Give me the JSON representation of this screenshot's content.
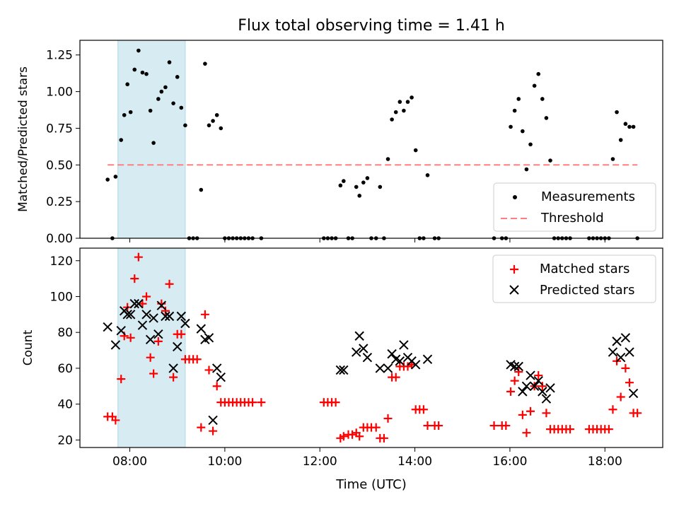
{
  "title": "Flux total observing time = 1.41 h",
  "xlabel": "Time (UTC)",
  "x_ticks": [
    "08:00",
    "10:00",
    "12:00",
    "14:00",
    "16:00",
    "18:00"
  ],
  "colors": {
    "measurements": "#000000",
    "threshold": "#ff7f7f",
    "matched": "#ff0000",
    "predicted": "#000000",
    "shade": "#add8e6"
  },
  "chart_data": [
    {
      "type": "scatter",
      "ylabel": "Matched/Predicted stars",
      "ylim": [
        0,
        1.35
      ],
      "y_ticks": [
        "0.00",
        "0.25",
        "0.50",
        "0.75",
        "1.00",
        "1.25"
      ],
      "xlim": [
        "06:57",
        "19:13"
      ],
      "shaded_interval": [
        "07:45",
        "09:10"
      ],
      "legend_position": "lower-right",
      "series": [
        {
          "name": "Measurements",
          "points": [
            [
              "07:32",
              0.4
            ],
            [
              "07:38",
              0.0
            ],
            [
              "07:42",
              0.42
            ],
            [
              "07:49",
              0.67
            ],
            [
              "07:53",
              0.84
            ],
            [
              "07:57",
              1.05
            ],
            [
              "08:01",
              0.86
            ],
            [
              "08:06",
              1.15
            ],
            [
              "08:11",
              1.28
            ],
            [
              "08:16",
              1.13
            ],
            [
              "08:21",
              1.12
            ],
            [
              "08:26",
              0.87
            ],
            [
              "08:30",
              0.65
            ],
            [
              "08:36",
              0.95
            ],
            [
              "08:40",
              1.0
            ],
            [
              "08:45",
              1.03
            ],
            [
              "08:50",
              1.2
            ],
            [
              "08:55",
              0.92
            ],
            [
              "09:00",
              1.1
            ],
            [
              "09:05",
              0.89
            ],
            [
              "09:10",
              0.77
            ],
            [
              "09:15",
              0.0
            ],
            [
              "09:20",
              0.0
            ],
            [
              "09:25",
              0.0
            ],
            [
              "09:30",
              0.33
            ],
            [
              "09:35",
              1.19
            ],
            [
              "09:40",
              0.77
            ],
            [
              "09:45",
              0.8
            ],
            [
              "09:50",
              0.84
            ],
            [
              "09:55",
              0.75
            ],
            [
              "10:00",
              0.0
            ],
            [
              "10:05",
              0.0
            ],
            [
              "10:10",
              0.0
            ],
            [
              "10:15",
              0.0
            ],
            [
              "10:20",
              0.0
            ],
            [
              "10:25",
              0.0
            ],
            [
              "10:30",
              0.0
            ],
            [
              "10:35",
              0.0
            ],
            [
              "10:46",
              0.0
            ],
            [
              "12:05",
              0.0
            ],
            [
              "12:10",
              0.0
            ],
            [
              "12:15",
              0.0
            ],
            [
              "12:20",
              0.0
            ],
            [
              "12:26",
              0.36
            ],
            [
              "12:30",
              0.39
            ],
            [
              "12:36",
              0.0
            ],
            [
              "12:41",
              0.0
            ],
            [
              "12:46",
              0.35
            ],
            [
              "12:50",
              0.29
            ],
            [
              "12:55",
              0.38
            ],
            [
              "13:00",
              0.41
            ],
            [
              "13:05",
              0.0
            ],
            [
              "13:11",
              0.0
            ],
            [
              "13:16",
              0.35
            ],
            [
              "13:21",
              0.0
            ],
            [
              "13:26",
              0.54
            ],
            [
              "13:31",
              0.81
            ],
            [
              "13:36",
              0.86
            ],
            [
              "13:41",
              0.93
            ],
            [
              "13:46",
              0.87
            ],
            [
              "13:51",
              0.93
            ],
            [
              "13:56",
              0.96
            ],
            [
              "14:01",
              0.6
            ],
            [
              "14:06",
              0.0
            ],
            [
              "14:11",
              0.0
            ],
            [
              "14:16",
              0.43
            ],
            [
              "14:25",
              0.0
            ],
            [
              "14:30",
              0.0
            ],
            [
              "15:40",
              0.0
            ],
            [
              "15:50",
              0.0
            ],
            [
              "15:55",
              0.0
            ],
            [
              "16:01",
              0.76
            ],
            [
              "16:06",
              0.87
            ],
            [
              "16:11",
              0.95
            ],
            [
              "16:16",
              0.73
            ],
            [
              "16:21",
              0.47
            ],
            [
              "16:26",
              0.64
            ],
            [
              "16:31",
              1.04
            ],
            [
              "16:36",
              1.12
            ],
            [
              "16:41",
              0.95
            ],
            [
              "16:46",
              0.82
            ],
            [
              "16:51",
              0.53
            ],
            [
              "16:56",
              0.0
            ],
            [
              "17:01",
              0.0
            ],
            [
              "17:06",
              0.0
            ],
            [
              "17:11",
              0.0
            ],
            [
              "17:16",
              0.0
            ],
            [
              "17:40",
              0.0
            ],
            [
              "17:45",
              0.0
            ],
            [
              "17:50",
              0.0
            ],
            [
              "17:55",
              0.0
            ],
            [
              "18:00",
              0.0
            ],
            [
              "18:05",
              0.0
            ],
            [
              "18:10",
              0.54
            ],
            [
              "18:15",
              0.86
            ],
            [
              "18:20",
              0.67
            ],
            [
              "18:26",
              0.78
            ],
            [
              "18:31",
              0.76
            ],
            [
              "18:36",
              0.76
            ],
            [
              "18:41",
              0.0
            ]
          ]
        },
        {
          "name": "Threshold",
          "style": "dashed",
          "x": [
            "07:32",
            "18:41"
          ],
          "y": [
            0.5,
            0.5
          ]
        }
      ]
    },
    {
      "type": "scatter",
      "ylabel": "Count",
      "ylim": [
        15.8,
        127
      ],
      "y_ticks": [
        "20",
        "40",
        "60",
        "80",
        "100",
        "120"
      ],
      "xlim": [
        "06:57",
        "19:13"
      ],
      "shaded_interval": [
        "07:45",
        "09:10"
      ],
      "legend_position": "upper-right",
      "series": [
        {
          "name": "Matched stars",
          "marker": "plus",
          "points": [
            [
              "07:32",
              33
            ],
            [
              "07:38",
              33
            ],
            [
              "07:42",
              31
            ],
            [
              "07:49",
              54
            ],
            [
              "07:53",
              78
            ],
            [
              "07:57",
              94
            ],
            [
              "08:01",
              77
            ],
            [
              "08:06",
              110
            ],
            [
              "08:11",
              122
            ],
            [
              "08:16",
              96
            ],
            [
              "08:21",
              100
            ],
            [
              "08:26",
              66
            ],
            [
              "08:30",
              57
            ],
            [
              "08:36",
              75
            ],
            [
              "08:40",
              96
            ],
            [
              "08:45",
              92
            ],
            [
              "08:50",
              107
            ],
            [
              "08:55",
              55
            ],
            [
              "09:00",
              79
            ],
            [
              "09:05",
              79
            ],
            [
              "09:10",
              65
            ],
            [
              "09:15",
              65
            ],
            [
              "09:20",
              65
            ],
            [
              "09:25",
              65
            ],
            [
              "09:30",
              27
            ],
            [
              "09:35",
              90
            ],
            [
              "09:40",
              59
            ],
            [
              "09:45",
              25
            ],
            [
              "09:50",
              50
            ],
            [
              "09:55",
              41
            ],
            [
              "10:00",
              41
            ],
            [
              "10:05",
              41
            ],
            [
              "10:10",
              41
            ],
            [
              "10:15",
              41
            ],
            [
              "10:20",
              41
            ],
            [
              "10:25",
              41
            ],
            [
              "10:30",
              41
            ],
            [
              "10:35",
              41
            ],
            [
              "10:46",
              41
            ],
            [
              "12:05",
              41
            ],
            [
              "12:10",
              41
            ],
            [
              "12:15",
              41
            ],
            [
              "12:20",
              41
            ],
            [
              "12:26",
              21
            ],
            [
              "12:30",
              22
            ],
            [
              "12:36",
              23
            ],
            [
              "12:41",
              23
            ],
            [
              "12:46",
              24
            ],
            [
              "12:50",
              22
            ],
            [
              "12:55",
              27
            ],
            [
              "13:00",
              27
            ],
            [
              "13:05",
              27
            ],
            [
              "13:11",
              27
            ],
            [
              "13:16",
              21
            ],
            [
              "13:21",
              21
            ],
            [
              "13:26",
              32
            ],
            [
              "13:31",
              55
            ],
            [
              "13:36",
              55
            ],
            [
              "13:41",
              61
            ],
            [
              "13:46",
              61
            ],
            [
              "13:51",
              61
            ],
            [
              "13:56",
              62
            ],
            [
              "14:01",
              37
            ],
            [
              "14:06",
              37
            ],
            [
              "14:11",
              37
            ],
            [
              "14:16",
              28
            ],
            [
              "14:25",
              28
            ],
            [
              "14:30",
              28
            ],
            [
              "15:40",
              28
            ],
            [
              "15:50",
              28
            ],
            [
              "15:55",
              28
            ],
            [
              "16:01",
              47
            ],
            [
              "16:06",
              53
            ],
            [
              "16:11",
              58
            ],
            [
              "16:16",
              34
            ],
            [
              "16:21",
              24
            ],
            [
              "16:26",
              36
            ],
            [
              "16:31",
              50
            ],
            [
              "16:36",
              56
            ],
            [
              "16:41",
              50
            ],
            [
              "16:46",
              35
            ],
            [
              "16:51",
              26
            ],
            [
              "16:56",
              26
            ],
            [
              "17:01",
              26
            ],
            [
              "17:06",
              26
            ],
            [
              "17:11",
              26
            ],
            [
              "17:16",
              26
            ],
            [
              "17:40",
              26
            ],
            [
              "17:45",
              26
            ],
            [
              "17:50",
              26
            ],
            [
              "17:55",
              26
            ],
            [
              "18:00",
              26
            ],
            [
              "18:05",
              26
            ],
            [
              "18:10",
              37
            ],
            [
              "18:15",
              64
            ],
            [
              "18:20",
              44
            ],
            [
              "18:26",
              60
            ],
            [
              "18:31",
              52
            ],
            [
              "18:36",
              35
            ],
            [
              "18:41",
              35
            ]
          ]
        },
        {
          "name": "Predicted stars",
          "marker": "x",
          "points": [
            [
              "07:32",
              83
            ],
            [
              "07:42",
              73
            ],
            [
              "07:49",
              81
            ],
            [
              "07:53",
              92
            ],
            [
              "07:57",
              90
            ],
            [
              "08:01",
              90
            ],
            [
              "08:06",
              96
            ],
            [
              "08:11",
              96
            ],
            [
              "08:16",
              84
            ],
            [
              "08:21",
              90
            ],
            [
              "08:26",
              76
            ],
            [
              "08:30",
              88
            ],
            [
              "08:36",
              79
            ],
            [
              "08:40",
              95
            ],
            [
              "08:45",
              89
            ],
            [
              "08:50",
              89
            ],
            [
              "08:55",
              60
            ],
            [
              "09:00",
              72
            ],
            [
              "09:05",
              89
            ],
            [
              "09:10",
              85
            ],
            [
              "09:30",
              82
            ],
            [
              "09:35",
              76
            ],
            [
              "09:40",
              77
            ],
            [
              "09:45",
              31
            ],
            [
              "09:50",
              60
            ],
            [
              "09:55",
              55
            ],
            [
              "12:26",
              59
            ],
            [
              "12:30",
              59
            ],
            [
              "12:46",
              69
            ],
            [
              "12:50",
              78
            ],
            [
              "12:55",
              71
            ],
            [
              "13:00",
              66
            ],
            [
              "13:16",
              60
            ],
            [
              "13:26",
              60
            ],
            [
              "13:31",
              68
            ],
            [
              "13:36",
              65
            ],
            [
              "13:41",
              64
            ],
            [
              "13:46",
              73
            ],
            [
              "13:51",
              66
            ],
            [
              "13:56",
              64
            ],
            [
              "14:01",
              62
            ],
            [
              "14:16",
              65
            ],
            [
              "16:01",
              62
            ],
            [
              "16:06",
              61
            ],
            [
              "16:11",
              61
            ],
            [
              "16:16",
              47
            ],
            [
              "16:21",
              50
            ],
            [
              "16:26",
              56
            ],
            [
              "16:31",
              50
            ],
            [
              "16:36",
              53
            ],
            [
              "16:41",
              47
            ],
            [
              "16:46",
              43
            ],
            [
              "16:51",
              49
            ],
            [
              "18:10",
              69
            ],
            [
              "18:15",
              75
            ],
            [
              "18:20",
              66
            ],
            [
              "18:26",
              77
            ],
            [
              "18:31",
              69
            ],
            [
              "18:36",
              46
            ]
          ]
        }
      ]
    }
  ]
}
